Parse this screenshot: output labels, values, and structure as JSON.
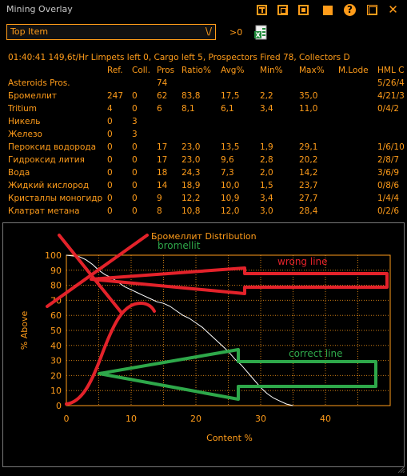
{
  "window": {
    "title": "Mining Overlay",
    "icons": [
      "window-layout-icon",
      "window-detach-icon",
      "minimize-icon",
      "help-icon",
      "close-icon"
    ]
  },
  "toolbar": {
    "dropdown_value": "Top Item",
    "dropdown_arrow": "\\/",
    "threshold_label": ">0",
    "export_icon": "excel-export-icon"
  },
  "status_line": "01:40:41 149,6t/Hr    Limpets left 0, Cargo left 5, Prospectors Fired 78, Collectors D",
  "table": {
    "headers": [
      "",
      "Ref.",
      "Coll.",
      "Pros",
      "Ratio%",
      "Avg%",
      "Min%",
      "Max%",
      "M.Lode",
      "HML C"
    ],
    "rows": [
      [
        "Asteroids Pros.",
        "",
        "",
        "74",
        "",
        "",
        "",
        "",
        "",
        "5/26/4"
      ],
      [
        "Бромеллит",
        "247",
        "0",
        "62",
        "83,8",
        "17,5",
        "2,2",
        "35,0",
        "",
        "4/21/3"
      ],
      [
        "Tritium",
        "4",
        "0",
        "6",
        "8,1",
        "6,1",
        "3,4",
        "11,0",
        "",
        "0/4/2"
      ],
      [
        "Никель",
        "0",
        "3",
        "",
        "",
        "",
        "",
        "",
        "",
        ""
      ],
      [
        "Железо",
        "0",
        "3",
        "",
        "",
        "",
        "",
        "",
        "",
        ""
      ],
      [
        "Пероксид водорода",
        "0",
        "0",
        "17",
        "23,0",
        "13,5",
        "1,9",
        "29,1",
        "",
        "1/6/10"
      ],
      [
        "Гидроксид лития",
        "0",
        "0",
        "17",
        "23,0",
        "9,6",
        "2,8",
        "20,2",
        "",
        "2/8/7"
      ],
      [
        "Вода",
        "0",
        "0",
        "18",
        "24,3",
        "7,3",
        "2,0",
        "14,2",
        "",
        "3/6/9"
      ],
      [
        "Жидкий кислород",
        "0",
        "0",
        "14",
        "18,9",
        "10,0",
        "1,5",
        "23,7",
        "",
        "0/8/6"
      ],
      [
        "Кристаллы моногидр",
        "0",
        "0",
        "9",
        "12,2",
        "10,9",
        "3,4",
        "27,7",
        "",
        "1/4/4"
      ],
      [
        "Клатрат метана",
        "0",
        "0",
        "8",
        "10,8",
        "12,0",
        "3,0",
        "28,4",
        "",
        "0/2/6"
      ]
    ]
  },
  "chart_data": {
    "type": "line",
    "title": "Бромеллит Distribution",
    "subtitle": "bromellit",
    "xlabel": "Content %",
    "ylabel": "% Above",
    "xlim": [
      0,
      50
    ],
    "ylim": [
      0,
      100
    ],
    "xticks": [
      "0",
      "10",
      "20",
      "30",
      "40"
    ],
    "yticks": [
      "0",
      "10",
      "20",
      "30",
      "40",
      "50",
      "60",
      "70",
      "80",
      "90",
      "100"
    ],
    "grid": true,
    "series": [
      {
        "color": "#ffffff",
        "x": [
          0,
          2,
          3,
          4,
          5,
          6,
          7,
          8,
          9,
          10,
          11,
          12,
          13,
          14,
          15,
          16,
          17,
          18,
          19,
          20,
          21,
          22,
          23,
          24,
          25,
          26,
          27,
          28,
          29,
          30,
          31,
          32,
          33,
          34,
          35
        ],
        "y": [
          100,
          99,
          97,
          94,
          90,
          87,
          85,
          82,
          79,
          77,
          75,
          73,
          71,
          69,
          68,
          66,
          63,
          60,
          58,
          55,
          52,
          48,
          44,
          40,
          36,
          31,
          27,
          22,
          17,
          12,
          8,
          5,
          3,
          1,
          0
        ]
      }
    ],
    "annotations": {
      "wrong_line_label": "wrong line",
      "correct_line_label": "correct line",
      "wrong_color": "#e3222a",
      "correct_color": "#2ea84a"
    }
  },
  "footer": {
    "resize_icon": "resize-grip-icon"
  }
}
